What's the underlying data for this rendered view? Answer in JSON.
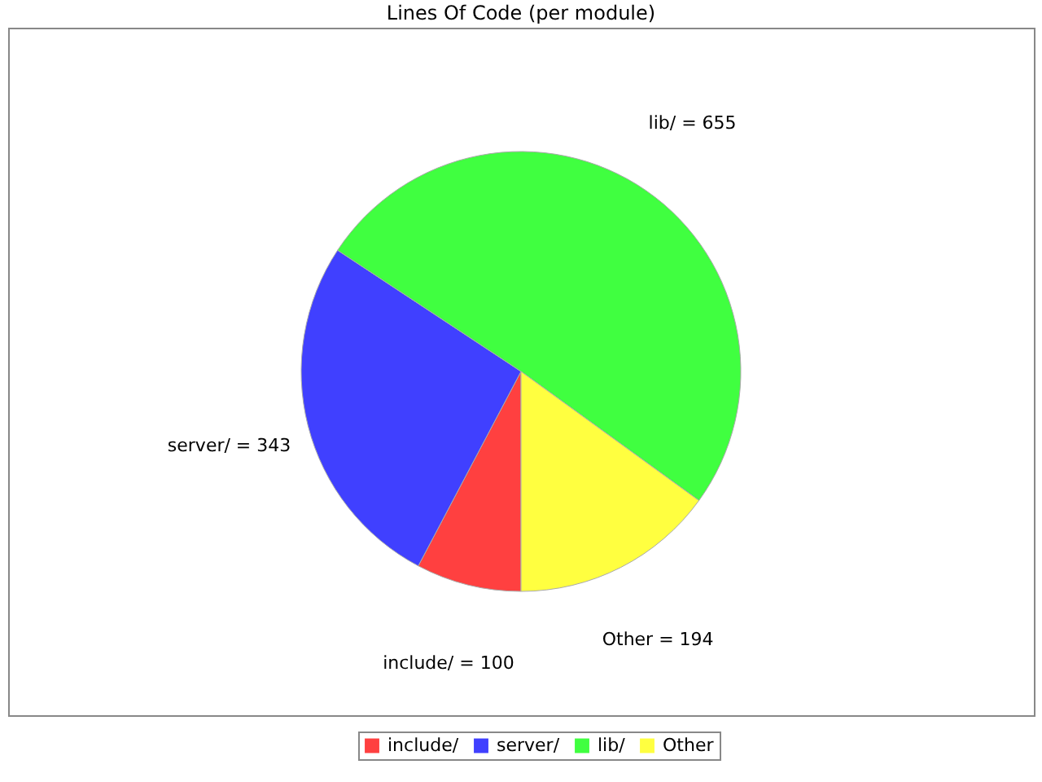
{
  "chart_data": {
    "type": "pie",
    "title": "Lines Of Code (per module)",
    "categories": [
      "include/",
      "server/",
      "lib/",
      "Other"
    ],
    "values": [
      100,
      343,
      655,
      194
    ],
    "colors": [
      "#ff4040",
      "#4040ff",
      "#40ff40",
      "#ffff40"
    ],
    "value_labels": [
      "include/ = 100",
      "server/ = 343",
      "lib/ = 655",
      "Other = 194"
    ],
    "legend": "bottom"
  }
}
